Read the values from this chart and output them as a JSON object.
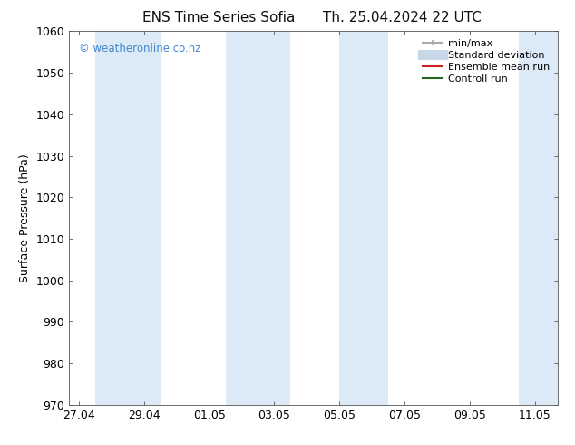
{
  "title_left": "ENS Time Series Sofia",
  "title_right": "Th. 25.04.2024 22 UTC",
  "ylabel": "Surface Pressure (hPa)",
  "ylim": [
    970,
    1060
  ],
  "yticks": [
    970,
    980,
    990,
    1000,
    1010,
    1020,
    1030,
    1040,
    1050,
    1060
  ],
  "xtick_labels": [
    "27.04",
    "29.04",
    "01.05",
    "03.05",
    "05.05",
    "07.05",
    "09.05",
    "11.05"
  ],
  "xtick_positions": [
    0,
    2,
    4,
    6,
    8,
    10,
    12,
    14
  ],
  "xlim": [
    -0.3,
    14.7
  ],
  "bg_color": "#ffffff",
  "plot_bg_color": "#ffffff",
  "watermark": "© weatheronline.co.nz",
  "watermark_color": "#4488cc",
  "shaded_bands": [
    {
      "x_start": 0.5,
      "x_end": 2.5
    },
    {
      "x_start": 4.5,
      "x_end": 6.5
    },
    {
      "x_start": 8.0,
      "x_end": 9.5
    },
    {
      "x_start": 13.5,
      "x_end": 14.7
    }
  ],
  "band_color": "#dce9f7",
  "legend_items": [
    {
      "label": "min/max",
      "color": "#aaaaaa",
      "lw": 1.5
    },
    {
      "label": "Standard deviation",
      "color": "#c8d8e8",
      "lw": 6
    },
    {
      "label": "Ensemble mean run",
      "color": "#cc2222",
      "lw": 1.5
    },
    {
      "label": "Controll run",
      "color": "#226622",
      "lw": 1.5
    }
  ],
  "font_family": "DejaVu Sans",
  "title_fontsize": 11,
  "axis_fontsize": 9,
  "tick_fontsize": 9
}
